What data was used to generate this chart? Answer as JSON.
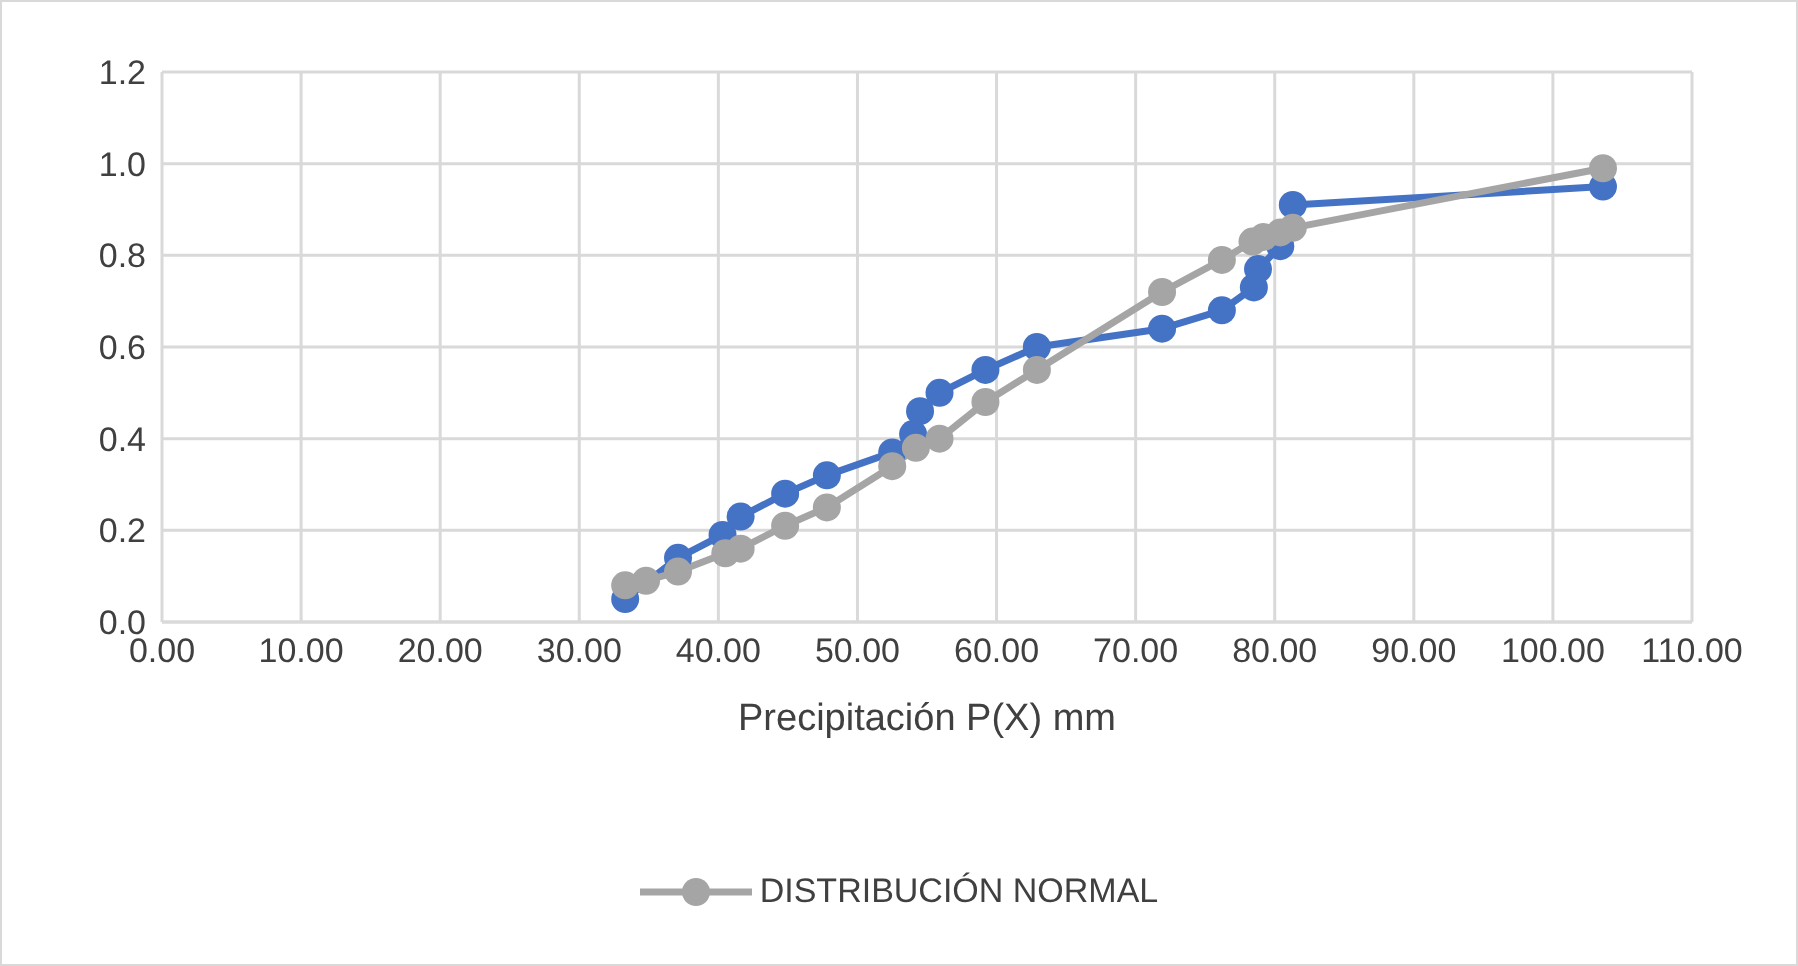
{
  "chart_data": {
    "type": "line",
    "xlabel": "Precipitación P(X) mm",
    "xlim": [
      0,
      110
    ],
    "xticks": [
      {
        "value": 0,
        "label": "0.00"
      },
      {
        "value": 10,
        "label": "10.00"
      },
      {
        "value": 20,
        "label": "20.00"
      },
      {
        "value": 30,
        "label": "30.00"
      },
      {
        "value": 40,
        "label": "40.00"
      },
      {
        "value": 50,
        "label": "50.00"
      },
      {
        "value": 60,
        "label": "60.00"
      },
      {
        "value": 70,
        "label": "70.00"
      },
      {
        "value": 80,
        "label": "80.00"
      },
      {
        "value": 90,
        "label": "90.00"
      },
      {
        "value": 100,
        "label": "100.00"
      },
      {
        "value": 110,
        "label": "110.00"
      }
    ],
    "ylim": [
      0,
      1.2
    ],
    "yticks": [
      {
        "value": 0,
        "label": "0.0"
      },
      {
        "value": 0.2,
        "label": "0.2"
      },
      {
        "value": 0.4,
        "label": "0.4"
      },
      {
        "value": 0.6,
        "label": "0.6"
      },
      {
        "value": 0.8,
        "label": "0.8"
      },
      {
        "value": 1,
        "label": "1.0"
      },
      1.2
    ],
    "grid": true,
    "legend": "bottom",
    "marker": "circle",
    "line_style": "solid",
    "series": [
      {
        "color": "#4472c4",
        "x": [
          33.3,
          37.1,
          40.3,
          41.6,
          44.8,
          47.8,
          52.5,
          54.0,
          54.5,
          55.9,
          59.2,
          62.9,
          71.9,
          76.2,
          78.5,
          78.8,
          80.4,
          81.3,
          103.6
        ],
        "values": [
          0.05,
          0.14,
          0.19,
          0.23,
          0.28,
          0.32,
          0.37,
          0.41,
          0.46,
          0.5,
          0.55,
          0.6,
          0.64,
          0.68,
          0.73,
          0.77,
          0.82,
          0.91,
          0.95
        ]
      },
      {
        "name": "DISTRIBUCIÓN NORMAL",
        "color": "#a5a5a5",
        "x": [
          33.3,
          34.8,
          37.1,
          40.5,
          41.6,
          44.8,
          47.8,
          52.5,
          54.2,
          55.9,
          59.2,
          62.9,
          71.9,
          76.2,
          78.4,
          79.2,
          80.4,
          81.3,
          103.6
        ],
        "values": [
          0.08,
          0.09,
          0.11,
          0.15,
          0.16,
          0.21,
          0.25,
          0.34,
          0.38,
          0.4,
          0.48,
          0.55,
          0.72,
          0.79,
          0.83,
          0.84,
          0.85,
          0.86,
          0.99
        ]
      }
    ]
  }
}
